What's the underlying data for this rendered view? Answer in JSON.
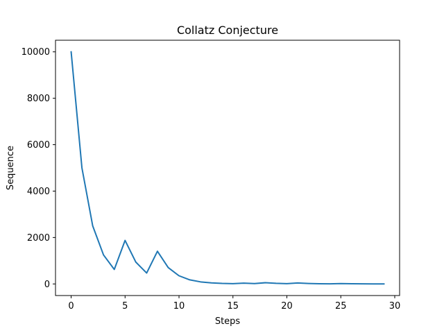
{
  "chart_data": {
    "type": "line",
    "title": "Collatz Conjecture",
    "xlabel": "Steps",
    "ylabel": "Sequence",
    "xlim": [
      -1.45,
      30.45
    ],
    "ylim": [
      -500,
      10500
    ],
    "xticks": [
      0,
      5,
      10,
      15,
      20,
      25,
      30
    ],
    "yticks": [
      0,
      2000,
      4000,
      6000,
      8000,
      10000
    ],
    "grid": false,
    "series": [
      {
        "color": "#1f77b4",
        "x": [
          0,
          1,
          2,
          3,
          4,
          5,
          6,
          7,
          8,
          9,
          10,
          11,
          12,
          13,
          14,
          15,
          16,
          17,
          18,
          19,
          20,
          21,
          22,
          23,
          24,
          25,
          26,
          27,
          28,
          29
        ],
        "y": [
          10000,
          5000,
          2500,
          1250,
          625,
          1876,
          938,
          469,
          1408,
          704,
          352,
          176,
          88,
          44,
          22,
          11,
          34,
          17,
          52,
          26,
          13,
          40,
          20,
          10,
          5,
          16,
          8,
          4,
          2,
          1
        ]
      }
    ]
  }
}
